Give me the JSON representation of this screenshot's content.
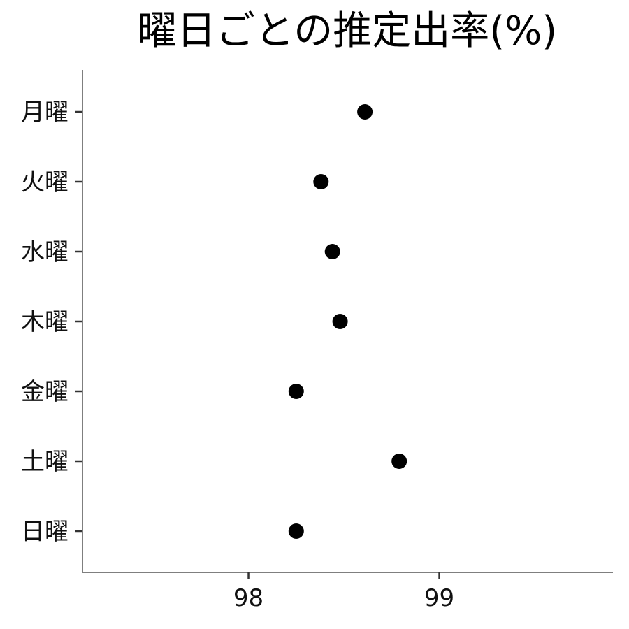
{
  "chart_data": {
    "type": "scatter",
    "title": "曜日ごとの推定出率(%)",
    "xlabel": "",
    "ylabel": "",
    "xlim": [
      97.13,
      99.91
    ],
    "xticks": [
      98,
      99
    ],
    "categories": [
      "月曜",
      "火曜",
      "水曜",
      "木曜",
      "金曜",
      "土曜",
      "日曜"
    ],
    "values": [
      98.61,
      98.38,
      98.44,
      98.48,
      98.25,
      98.79,
      98.25
    ],
    "grid": false,
    "legend": "none",
    "point_color": "#000000"
  }
}
